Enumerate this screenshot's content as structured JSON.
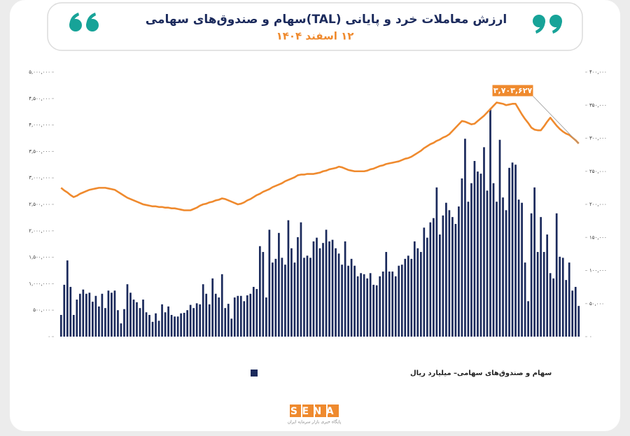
{
  "chart_data": {
    "type": "bar",
    "title": "ارزش معاملات خرد و پایانی (TAL)سهام و صندوق‌های سهامی",
    "subtitle": "۱۲ اسفند ۱۴۰۴",
    "annotation": "۳,۷۰۳,۶۲۷",
    "brand": "SENA",
    "brand_tagline": "پایگاه خبری بازار سرمایه ایران",
    "categories": [
      null,
      null,
      null,
      null,
      null,
      null,
      null,
      null,
      null,
      null,
      null,
      null,
      null,
      null,
      null,
      null,
      null,
      null,
      null,
      null,
      null,
      null,
      null,
      null,
      null,
      null,
      null,
      null,
      null,
      null,
      null,
      null,
      null,
      null,
      null,
      null,
      null,
      null,
      null,
      null,
      null,
      null,
      null,
      null,
      null,
      null,
      null,
      null,
      null,
      null,
      null,
      null,
      null,
      null,
      null,
      null,
      null,
      null,
      null,
      null,
      null,
      null,
      null,
      null,
      null,
      null,
      null,
      null,
      null,
      null,
      null,
      null,
      null,
      null,
      null,
      null,
      null,
      null,
      null,
      null,
      null,
      null,
      null,
      null,
      null,
      null,
      null,
      null,
      null,
      null,
      null,
      null,
      null,
      null,
      null,
      null,
      null,
      null,
      null,
      null,
      null,
      null,
      null,
      null,
      null,
      null,
      null,
      null,
      null,
      null,
      null,
      null,
      null,
      null,
      null,
      null,
      null,
      null,
      null,
      null,
      null,
      null,
      null,
      null,
      null,
      null,
      null,
      null,
      null,
      null,
      null,
      null,
      null,
      null,
      null,
      null,
      null,
      null,
      null,
      null,
      null,
      null,
      null,
      null,
      null,
      null,
      null,
      null,
      null,
      null,
      null,
      null,
      null,
      null,
      null,
      null,
      null,
      null,
      null,
      null,
      null,
      null,
      null,
      null,
      null
    ],
    "series": [
      {
        "name": "سهام و صندوق‌های سهامی– میلیارد ریال",
        "type": "bar",
        "color": "#1b2a5c",
        "values": [
          410000,
          980000,
          1440000,
          940000,
          410000,
          700000,
          810000,
          890000,
          810000,
          830000,
          660000,
          770000,
          570000,
          810000,
          540000,
          870000,
          830000,
          870000,
          500000,
          250000,
          520000,
          990000,
          830000,
          700000,
          650000,
          540000,
          700000,
          460000,
          410000,
          280000,
          440000,
          300000,
          610000,
          460000,
          570000,
          410000,
          380000,
          380000,
          440000,
          450000,
          500000,
          600000,
          540000,
          630000,
          610000,
          990000,
          810000,
          610000,
          1100000,
          810000,
          740000,
          1180000,
          540000,
          620000,
          340000,
          740000,
          770000,
          770000,
          670000,
          780000,
          810000,
          940000,
          900000,
          1710000,
          1600000,
          740000,
          2020000,
          1400000,
          1470000,
          1960000,
          1490000,
          1360000,
          2200000,
          1670000,
          1400000,
          1880000,
          2160000,
          1490000,
          1530000,
          1490000,
          1800000,
          1870000,
          1670000,
          1770000,
          2020000,
          1800000,
          1830000,
          1670000,
          1570000,
          1360000,
          1800000,
          1340000,
          1470000,
          1340000,
          1140000,
          1200000,
          1180000,
          1100000,
          1200000,
          980000,
          970000,
          1140000,
          1230000,
          1600000,
          1230000,
          1230000,
          1140000,
          1340000,
          1360000,
          1470000,
          1530000,
          1470000,
          1800000,
          1670000,
          1600000,
          2060000,
          1870000,
          2160000,
          2240000,
          2820000,
          1930000,
          2290000,
          2530000,
          2390000,
          2260000,
          2130000,
          2460000,
          2990000,
          3740000,
          2550000,
          2900000,
          3320000,
          3120000,
          3080000,
          3580000,
          2760000,
          4310000,
          2900000,
          2550000,
          3720000,
          2630000,
          2390000,
          3190000,
          3290000,
          3250000,
          2590000,
          2530000,
          1400000,
          670000,
          2330000,
          2820000,
          1600000,
          2260000,
          1600000,
          1930000,
          1200000,
          1100000,
          2330000,
          1510000,
          1490000,
          1070000,
          1400000,
          870000,
          940000,
          580000
        ]
      },
      {
        "type": "line",
        "axis": "y2",
        "color": "#ef8a2e",
        "values": [
          225000,
          221000,
          218000,
          214000,
          211000,
          213000,
          216000,
          218000,
          220000,
          222000,
          223000,
          224000,
          225000,
          225000,
          225000,
          224000,
          223000,
          222000,
          219000,
          216000,
          213000,
          210000,
          208000,
          206000,
          204000,
          202000,
          200000,
          199000,
          198000,
          197000,
          197000,
          196000,
          196000,
          195000,
          195000,
          194000,
          194000,
          193000,
          192000,
          191000,
          191000,
          191000,
          193000,
          195000,
          198000,
          200000,
          201000,
          203000,
          204000,
          206000,
          207000,
          209000,
          208000,
          206000,
          204000,
          202000,
          200000,
          201000,
          203000,
          206000,
          208000,
          211000,
          214000,
          216000,
          219000,
          221000,
          223000,
          226000,
          228000,
          230000,
          232000,
          235000,
          237000,
          239000,
          241000,
          244000,
          245000,
          245000,
          246000,
          246000,
          246000,
          247000,
          248000,
          250000,
          251000,
          253000,
          254000,
          255000,
          257000,
          256000,
          254000,
          252000,
          251000,
          250000,
          250000,
          250000,
          250000,
          251000,
          253000,
          254000,
          256000,
          258000,
          259000,
          261000,
          262000,
          263000,
          264000,
          265000,
          267000,
          269000,
          270000,
          272000,
          275000,
          278000,
          281000,
          285000,
          288000,
          291000,
          293000,
          296000,
          298000,
          301000,
          303000,
          306000,
          311000,
          316000,
          321000,
          326000,
          325000,
          323000,
          321000,
          322000,
          326000,
          330000,
          334000,
          339000,
          344000,
          349000,
          354000,
          353000,
          352000,
          350000,
          351000,
          352000,
          352000,
          344000,
          336000,
          329000,
          323000,
          316000,
          313000,
          312000,
          312000,
          318000,
          325000,
          331000,
          325000,
          319000,
          314000,
          310000,
          307000,
          305000,
          301000,
          297000,
          292000
        ]
      }
    ],
    "ylim": [
      0,
      5000000
    ],
    "yticks": [
      {
        "value": 0,
        "label": "۰"
      },
      {
        "value": 500000,
        "label": "۵۰۰,۰۰۰"
      },
      {
        "value": 1000000,
        "label": "۱,۰۰۰,۰۰۰"
      },
      {
        "value": 1500000,
        "label": "۱,۵۰۰,۰۰۰"
      },
      {
        "value": 2000000,
        "label": "۲,۰۰۰,۰۰۰"
      },
      {
        "value": 2500000,
        "label": "۲,۵۰۰,۰۰۰"
      },
      {
        "value": 3000000,
        "label": "۳,۰۰۰,۰۰۰"
      },
      {
        "value": 3500000,
        "label": "۳,۵۰۰,۰۰۰"
      },
      {
        "value": 4000000,
        "label": "۴,۰۰۰,۰۰۰"
      },
      {
        "value": 4500000,
        "label": "۴,۵۰۰,۰۰۰"
      },
      {
        "value": 5000000,
        "label": "۵,۰۰۰,۰۰۰"
      }
    ],
    "y2lim": [
      0,
      400000
    ],
    "y2ticks": [
      {
        "value": 0,
        "label": "۰"
      },
      {
        "value": 50000,
        "label": "۵۰,۰۰۰"
      },
      {
        "value": 100000,
        "label": "۱۰۰,۰۰۰"
      },
      {
        "value": 150000,
        "label": "۱۵۰,۰۰۰"
      },
      {
        "value": 200000,
        "label": "۲۰۰,۰۰۰"
      },
      {
        "value": 250000,
        "label": "۲۵۰,۰۰۰"
      },
      {
        "value": 300000,
        "label": "۳۰۰,۰۰۰"
      },
      {
        "value": 350000,
        "label": "۳۵۰,۰۰۰"
      },
      {
        "value": 400000,
        "label": "۴۰۰,۰۰۰"
      }
    ],
    "grid": false
  }
}
